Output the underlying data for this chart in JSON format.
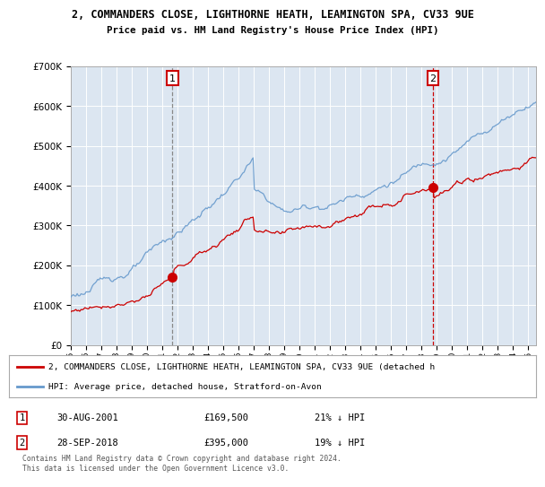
{
  "title_line1": "2, COMMANDERS CLOSE, LIGHTHORNE HEATH, LEAMINGTON SPA, CV33 9UE",
  "title_line2": "Price paid vs. HM Land Registry's House Price Index (HPI)",
  "legend_label_red": "2, COMMANDERS CLOSE, LIGHTHORNE HEATH, LEAMINGTON SPA, CV33 9UE (detached h",
  "legend_label_blue": "HPI: Average price, detached house, Stratford-on-Avon",
  "annotation1_label": "1",
  "annotation1_date": "30-AUG-2001",
  "annotation1_price": "£169,500",
  "annotation1_hpi": "21% ↓ HPI",
  "annotation2_label": "2",
  "annotation2_date": "28-SEP-2018",
  "annotation2_price": "£395,000",
  "annotation2_hpi": "19% ↓ HPI",
  "footer": "Contains HM Land Registry data © Crown copyright and database right 2024.\nThis data is licensed under the Open Government Licence v3.0.",
  "bg_color": "#dce6f1",
  "red_color": "#cc0000",
  "blue_color": "#6699cc",
  "vline1_color": "#888888",
  "vline2_color": "#cc0000",
  "marker1_x": 2001.67,
  "marker1_y": 169500,
  "marker2_x": 2018.75,
  "marker2_y": 395000,
  "ylim_min": 0,
  "ylim_max": 700000,
  "xlim_min": 1995,
  "xlim_max": 2025.5,
  "yticks": [
    0,
    100000,
    200000,
    300000,
    400000,
    500000,
    600000,
    700000
  ],
  "xticks": [
    1995,
    1996,
    1997,
    1998,
    1999,
    2000,
    2001,
    2002,
    2003,
    2004,
    2005,
    2006,
    2007,
    2008,
    2009,
    2010,
    2011,
    2012,
    2013,
    2014,
    2015,
    2016,
    2017,
    2018,
    2019,
    2020,
    2021,
    2022,
    2023,
    2024,
    2025
  ]
}
